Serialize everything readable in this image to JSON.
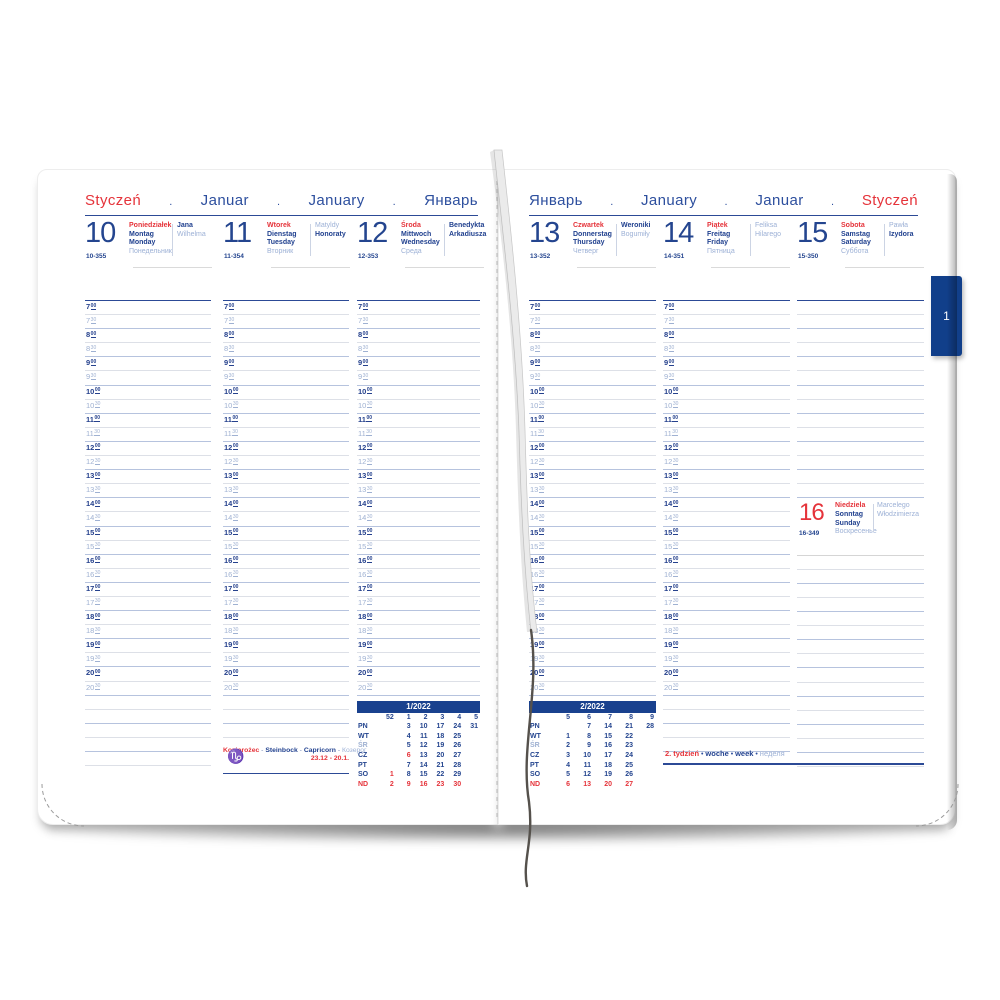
{
  "colors": {
    "navy": "#21418f",
    "red": "#e5333a",
    "light_blue": "#9db1d6",
    "rule_blue": "#b6c3de",
    "rule_gray": "#dde0e7",
    "tab_bg": "#113f8a"
  },
  "tab": {
    "label": "1"
  },
  "times": [
    "7:00",
    "7:30",
    "8:00",
    "8:30",
    "9:00",
    "9:30",
    "10:00",
    "10:30",
    "11:00",
    "11:30",
    "12:00",
    "12:30",
    "13:00",
    "13:30",
    "14:00",
    "14:30",
    "15:00",
    "15:30",
    "16:00",
    "16:30",
    "17:00",
    "17:30",
    "18:00",
    "18:30",
    "19:00",
    "19:30",
    "20:00",
    "20:30"
  ],
  "format_note": "cell values and labels prefixed with * are printed in red",
  "left_page": {
    "month_header": [
      {
        "label": "Styczeń",
        "red": true
      },
      {
        "label": "Januar",
        "red": false
      },
      {
        "label": "January",
        "red": false
      },
      {
        "label": "Январь",
        "red": false
      }
    ],
    "days": [
      {
        "number": "10",
        "day_of_year": "10-355",
        "weekday": [
          {
            "label": "Poniedziałek",
            "style": "red"
          },
          {
            "label": "Montag",
            "style": "navy"
          },
          {
            "label": "Monday",
            "style": "navy"
          },
          {
            "label": "Понедельник",
            "style": "light"
          }
        ],
        "name_days": [
          {
            "label": "Jana",
            "style": "navy"
          },
          {
            "label": "Wilhelma",
            "style": "light"
          }
        ]
      },
      {
        "number": "11",
        "day_of_year": "11-354",
        "weekday": [
          {
            "label": "Wtorek",
            "style": "red"
          },
          {
            "label": "Dienstag",
            "style": "navy"
          },
          {
            "label": "Tuesday",
            "style": "navy"
          },
          {
            "label": "Вторник",
            "style": "light"
          }
        ],
        "name_days": [
          {
            "label": "Matyldy",
            "style": "light"
          },
          {
            "label": "Honoraty",
            "style": "navy"
          }
        ]
      },
      {
        "number": "12",
        "day_of_year": "12-353",
        "weekday": [
          {
            "label": "Środa",
            "style": "red"
          },
          {
            "label": "Mittwoch",
            "style": "navy"
          },
          {
            "label": "Wednesday",
            "style": "navy"
          },
          {
            "label": "Среда",
            "style": "light"
          }
        ],
        "name_days": [
          {
            "label": "Benedykta",
            "style": "navy"
          },
          {
            "label": "Arkadiusza",
            "style": "navy"
          }
        ]
      }
    ],
    "zodiac": {
      "icon": "capricorn-icon",
      "names": [
        {
          "label": "Koziorożec",
          "style": "red"
        },
        {
          "label": "Steinbock",
          "style": "navy"
        },
        {
          "label": "Capricorn",
          "style": "navy"
        },
        {
          "label": "Козерог",
          "style": "light"
        }
      ],
      "date_range": "23.12 - 20.1."
    },
    "mini_calendar": {
      "title": "1/2022",
      "week_numbers": [
        "52",
        "1",
        "2",
        "3",
        "4",
        "5"
      ],
      "rows": [
        {
          "label": "PN",
          "cells": [
            "",
            "3",
            "10",
            "17",
            "24",
            "31"
          ]
        },
        {
          "label": "WT",
          "cells": [
            "",
            "4",
            "11",
            "18",
            "25",
            ""
          ]
        },
        {
          "label": "ŚR",
          "cells": [
            "",
            "5",
            "12",
            "19",
            "26",
            ""
          ]
        },
        {
          "label": "CZ",
          "cells": [
            "",
            "*6",
            "13",
            "20",
            "27",
            ""
          ]
        },
        {
          "label": "PT",
          "cells": [
            "",
            "7",
            "14",
            "21",
            "28",
            ""
          ]
        },
        {
          "label": "SO",
          "cells": [
            "*1",
            "8",
            "15",
            "22",
            "29",
            ""
          ]
        },
        {
          "label": "*ND",
          "cells": [
            "*2",
            "*9",
            "*16",
            "*23",
            "*30",
            ""
          ]
        }
      ]
    }
  },
  "right_page": {
    "month_header": [
      {
        "label": "Январь",
        "red": false
      },
      {
        "label": "January",
        "red": false
      },
      {
        "label": "Januar",
        "red": false
      },
      {
        "label": "Styczeń",
        "red": true
      }
    ],
    "days": [
      {
        "number": "13",
        "day_of_year": "13-352",
        "weekday": [
          {
            "label": "Czwartek",
            "style": "red"
          },
          {
            "label": "Donnerstag",
            "style": "navy"
          },
          {
            "label": "Thursday",
            "style": "navy"
          },
          {
            "label": "Четверг",
            "style": "light"
          }
        ],
        "name_days": [
          {
            "label": "Weroniki",
            "style": "navy"
          },
          {
            "label": "Bogumiły",
            "style": "light"
          }
        ]
      },
      {
        "number": "14",
        "day_of_year": "14-351",
        "weekday": [
          {
            "label": "Piątek",
            "style": "red"
          },
          {
            "label": "Freitag",
            "style": "navy"
          },
          {
            "label": "Friday",
            "style": "navy"
          },
          {
            "label": "Пятница",
            "style": "light"
          }
        ],
        "name_days": [
          {
            "label": "Feliksa",
            "style": "light"
          },
          {
            "label": "Hilarego",
            "style": "light"
          }
        ]
      },
      {
        "number": "15",
        "day_of_year": "15-350",
        "weekday": [
          {
            "label": "Sobota",
            "style": "red"
          },
          {
            "label": "Samstag",
            "style": "navy"
          },
          {
            "label": "Saturday",
            "style": "navy"
          },
          {
            "label": "Суббота",
            "style": "light"
          }
        ],
        "name_days": [
          {
            "label": "Pawła",
            "style": "light"
          },
          {
            "label": "Izydora",
            "style": "navy"
          }
        ]
      }
    ],
    "sunday": {
      "number": "16",
      "number_red": true,
      "day_of_year": "16-349",
      "weekday": [
        {
          "label": "Niedziela",
          "style": "red"
        },
        {
          "label": "Sonntag",
          "style": "navy"
        },
        {
          "label": "Sunday",
          "style": "navy"
        },
        {
          "label": "Воскресенье",
          "style": "light"
        }
      ],
      "name_days": [
        {
          "label": "Marcelego",
          "style": "light"
        },
        {
          "label": "Włodzimierza",
          "style": "light"
        }
      ]
    },
    "mini_calendar": {
      "title": "2/2022",
      "week_numbers": [
        "5",
        "6",
        "7",
        "8",
        "9"
      ],
      "rows": [
        {
          "label": "PN",
          "cells": [
            "",
            "7",
            "14",
            "21",
            "28"
          ]
        },
        {
          "label": "WT",
          "cells": [
            "1",
            "8",
            "15",
            "22",
            ""
          ]
        },
        {
          "label": "ŚR",
          "cells": [
            "2",
            "9",
            "16",
            "23",
            ""
          ]
        },
        {
          "label": "CZ",
          "cells": [
            "3",
            "10",
            "17",
            "24",
            ""
          ]
        },
        {
          "label": "PT",
          "cells": [
            "4",
            "11",
            "18",
            "25",
            ""
          ]
        },
        {
          "label": "SO",
          "cells": [
            "5",
            "12",
            "19",
            "26",
            ""
          ]
        },
        {
          "label": "*ND",
          "cells": [
            "*6",
            "*13",
            "*20",
            "*27",
            ""
          ]
        }
      ]
    },
    "week_line": {
      "separator": "•",
      "segments": [
        {
          "label": "2.",
          "style": "red-bold"
        },
        {
          "label": "tydzień",
          "style": "red"
        },
        {
          "label": "woche",
          "style": "navy"
        },
        {
          "label": "week",
          "style": "navy"
        },
        {
          "label": "неделя",
          "style": "light"
        }
      ]
    }
  }
}
